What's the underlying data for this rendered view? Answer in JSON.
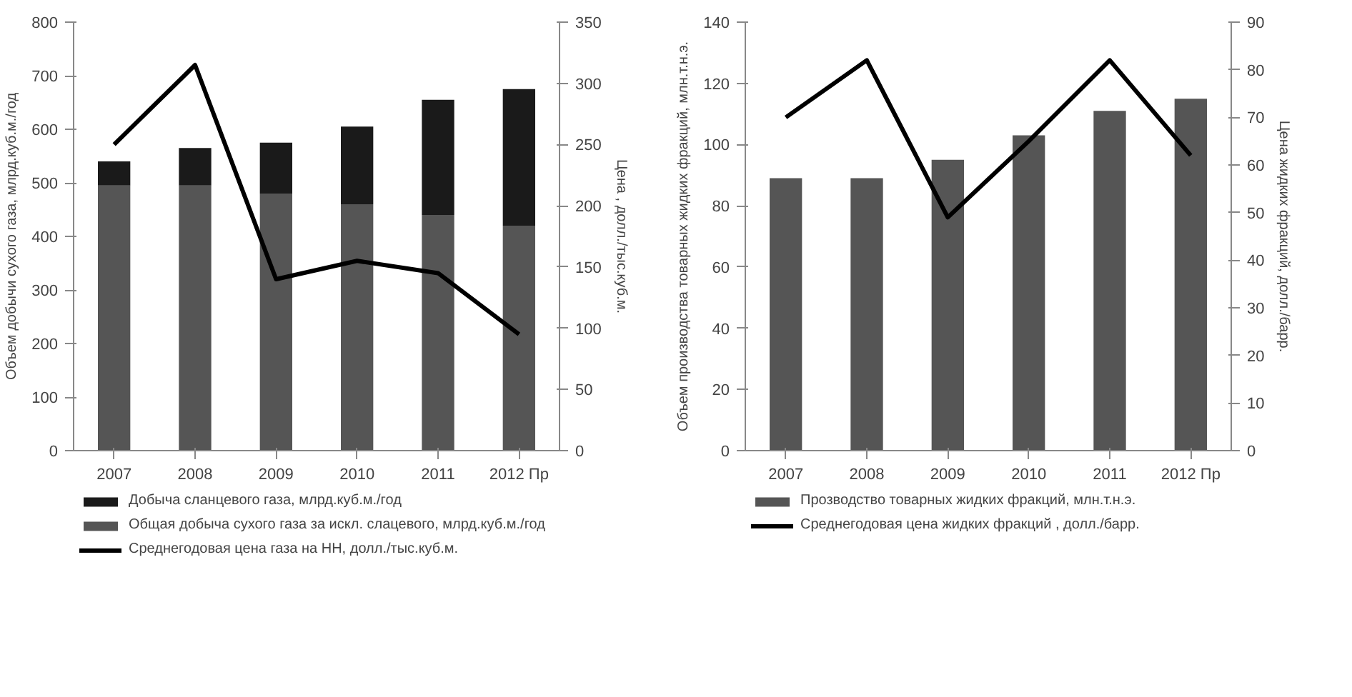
{
  "chart_data": [
    {
      "type": "bar",
      "stacked": true,
      "categories": [
        "2007",
        "2008",
        "2009",
        "2010",
        "2011",
        "2012 Пр"
      ],
      "ylabel": "Объем добычи сухого газа, млрд.куб.м./год",
      "y2label": "Цена , долл./тыс.куб.м.",
      "ylim": [
        0,
        800
      ],
      "yticks": [
        0,
        100,
        200,
        300,
        400,
        500,
        600,
        700,
        800
      ],
      "y2lim": [
        0,
        350
      ],
      "y2ticks": [
        0,
        50,
        100,
        150,
        200,
        250,
        300,
        350
      ],
      "grid": false,
      "legend": "bottom",
      "series": [
        {
          "name": "Общая добыча сухого газа за искл. слацевого, млрд.куб.м./год",
          "color": "#555555",
          "values": [
            495,
            495,
            480,
            460,
            440,
            420
          ]
        },
        {
          "name": "Добыча сланцевого газа, млрд.куб.м./год",
          "color": "#1a1a1a",
          "values": [
            45,
            70,
            95,
            145,
            215,
            255
          ]
        },
        {
          "name": "Среднегодовая цена газа на НН, долл./тыс.куб.м.",
          "type": "line",
          "axis": "y2",
          "color": "#000000",
          "values": [
            250,
            315,
            140,
            155,
            145,
            95
          ]
        }
      ]
    },
    {
      "type": "bar",
      "categories": [
        "2007",
        "2008",
        "2009",
        "2010",
        "2011",
        "2012 Пр"
      ],
      "ylabel": "Объем производства товарных жидких фракций, млн.т.н.э.",
      "y2label": "Цена жидких фракций, долл./барр.",
      "ylim": [
        0,
        140
      ],
      "yticks": [
        0,
        20,
        40,
        60,
        80,
        100,
        120,
        140
      ],
      "y2lim": [
        0,
        90
      ],
      "y2ticks": [
        0,
        10,
        20,
        30,
        40,
        50,
        60,
        70,
        80,
        90
      ],
      "grid": false,
      "legend": "bottom",
      "series": [
        {
          "name": "Прозводство товарных жидких фракций, млн.т.н.э.",
          "color": "#555555",
          "values": [
            89,
            89,
            95,
            103,
            111,
            115
          ]
        },
        {
          "name": "Среднегодовая цена жидких фракций , долл./барр.",
          "type": "line",
          "axis": "y2",
          "color": "#000000",
          "values": [
            70,
            82,
            49,
            65,
            82,
            62
          ]
        }
      ]
    }
  ]
}
